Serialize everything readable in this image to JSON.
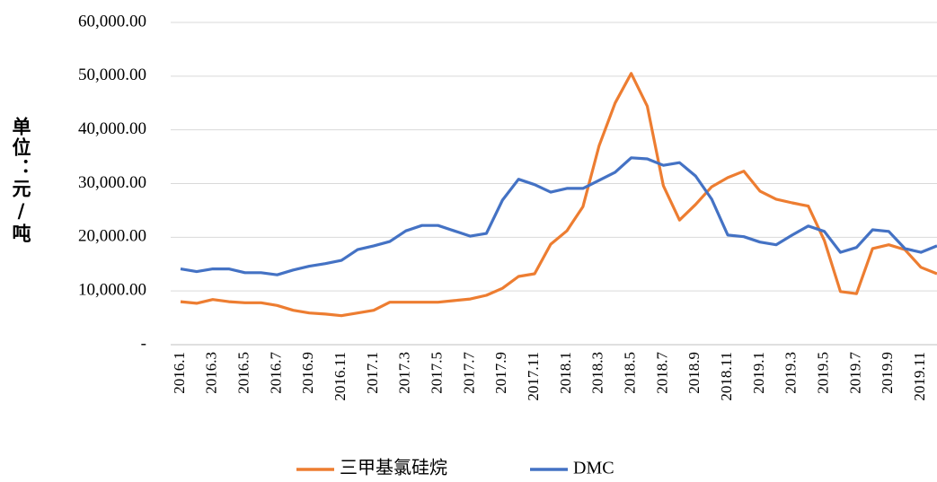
{
  "chart_data": {
    "type": "line",
    "y_label": "单位：元/吨",
    "categories": [
      "2016.1",
      null,
      "2016.3",
      null,
      "2016.5",
      null,
      "2016.7",
      null,
      "2016.9",
      null,
      "2016.11",
      null,
      "2017.1",
      null,
      "2017.3",
      null,
      "2017.5",
      null,
      "2017.7",
      null,
      "2017.9",
      null,
      "2017.11",
      null,
      "2018.1",
      null,
      "2018.3",
      null,
      "2018.5",
      null,
      "2018.7",
      null,
      "2018.9",
      null,
      "2018.11",
      null,
      "2019.1",
      null,
      "2019.3",
      null,
      "2019.5",
      null,
      "2019.7",
      null,
      "2019.9",
      null,
      "2019.11",
      null
    ],
    "series": [
      {
        "name": "三甲基氯硅烷",
        "color": "#ed7d31",
        "values": [
          8000,
          7700,
          8400,
          8000,
          7800,
          7800,
          7300,
          6400,
          5900,
          5700,
          5400,
          5900,
          6400,
          7900,
          7900,
          7900,
          7900,
          8200,
          8500,
          9200,
          10500,
          12700,
          13200,
          18700,
          21200,
          25700,
          37000,
          45000,
          50500,
          44400,
          29600,
          23200,
          26100,
          29400,
          31100,
          32300,
          28600,
          27100,
          26400,
          25800,
          19400,
          9900,
          9500,
          17900,
          18600,
          17700,
          14400,
          13200
        ]
      },
      {
        "name": "DMC",
        "color": "#4472c4",
        "values": [
          14100,
          13600,
          14100,
          14100,
          13400,
          13400,
          13000,
          13900,
          14600,
          15100,
          15700,
          17700,
          18400,
          19200,
          21200,
          22200,
          22200,
          21200,
          20200,
          20700,
          26900,
          30800,
          29800,
          28400,
          29100,
          29100,
          30600,
          32100,
          34800,
          34600,
          33400,
          33900,
          31400,
          27100,
          20400,
          20100,
          19100,
          18600,
          20400,
          22100,
          21100,
          17200,
          18100,
          21400,
          21100,
          17900,
          17200,
          18400
        ]
      }
    ],
    "ylim": [
      0,
      60000
    ],
    "yticks": [
      {
        "value": 0,
        "label": "-"
      },
      {
        "value": 10000,
        "label": "10,000.00"
      },
      {
        "value": 20000,
        "label": "20,000.00"
      },
      {
        "value": 30000,
        "label": "30,000.00"
      },
      {
        "value": 40000,
        "label": "40,000.00"
      },
      {
        "value": 50000,
        "label": "50,000.00"
      },
      {
        "value": 60000,
        "label": "60,000.00"
      }
    ],
    "grid": true
  }
}
